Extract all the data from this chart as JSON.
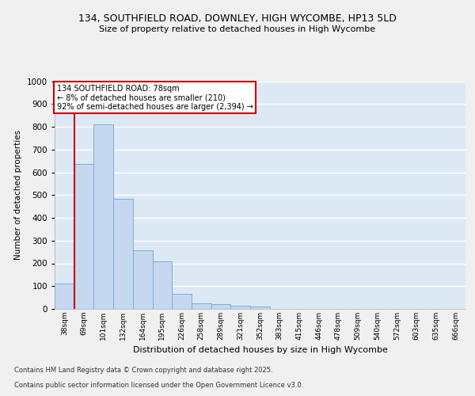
{
  "title_line1": "134, SOUTHFIELD ROAD, DOWNLEY, HIGH WYCOMBE, HP13 5LD",
  "title_line2": "Size of property relative to detached houses in High Wycombe",
  "xlabel": "Distribution of detached houses by size in High Wycombe",
  "ylabel": "Number of detached properties",
  "categories": [
    "38sqm",
    "69sqm",
    "101sqm",
    "132sqm",
    "164sqm",
    "195sqm",
    "226sqm",
    "258sqm",
    "289sqm",
    "321sqm",
    "352sqm",
    "383sqm",
    "415sqm",
    "446sqm",
    "478sqm",
    "509sqm",
    "540sqm",
    "572sqm",
    "603sqm",
    "635sqm",
    "666sqm"
  ],
  "values": [
    110,
    635,
    810,
    483,
    258,
    210,
    65,
    25,
    20,
    13,
    10,
    0,
    0,
    0,
    0,
    0,
    0,
    0,
    0,
    0,
    0
  ],
  "bar_color": "#c5d8f0",
  "bar_edge_color": "#7aafd4",
  "highlight_line_color": "#cc0000",
  "ylim": [
    0,
    1000
  ],
  "yticks": [
    0,
    100,
    200,
    300,
    400,
    500,
    600,
    700,
    800,
    900,
    1000
  ],
  "bg_color": "#dce9f5",
  "fig_color": "#f0f0f0",
  "grid_color": "#ffffff",
  "annotation_title": "134 SOUTHFIELD ROAD: 78sqm",
  "annotation_line1": "← 8% of detached houses are smaller (210)",
  "annotation_line2": "92% of semi-detached houses are larger (2,394) →",
  "annotation_box_color": "#ffffff",
  "annotation_box_edge_color": "#cc0000",
  "footnote1": "Contains HM Land Registry data © Crown copyright and database right 2025.",
  "footnote2": "Contains public sector information licensed under the Open Government Licence v3.0."
}
